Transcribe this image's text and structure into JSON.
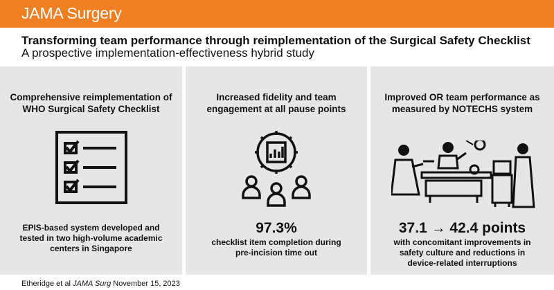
{
  "header": {
    "brand": "JAMA Surgery",
    "accent_color": "#f07f22"
  },
  "title": "Transforming team performance through reimplementation  of the Surgical Safety Checklist",
  "subtitle": "A prospective implementation-effectiveness hybrid study",
  "panels": [
    {
      "heading_line1": "Comprehensive reimplementation of",
      "heading_line2": "WHO Surgical Safety Checklist",
      "icon": "checklist-icon",
      "desc_line1": "EPIS-based system developed and",
      "desc_line2": "tested in two high-volume academic",
      "desc_line3": "centers in Singapore"
    },
    {
      "heading_line1": "Increased fidelity and team",
      "heading_line2": "engagement at all pause points",
      "icon": "team-gear-chart-icon",
      "stat": "97.3%",
      "desc_line1": "checklist item completion during",
      "desc_line2": "pre-incision time out"
    },
    {
      "heading_line1": "Improved OR team performance as",
      "heading_line2": "measured by NOTECHS system",
      "icon": "operating-room-team-icon",
      "stat": "37.1 → 42.4 points",
      "desc_line1": "with concomitant improvements in",
      "desc_line2": "safety culture and reductions in",
      "desc_line3": "device-related interruptions"
    }
  ],
  "footer": {
    "authors": "Etheridge et al ",
    "journal": "JAMA Surg",
    "date": " November 15, 2023"
  }
}
